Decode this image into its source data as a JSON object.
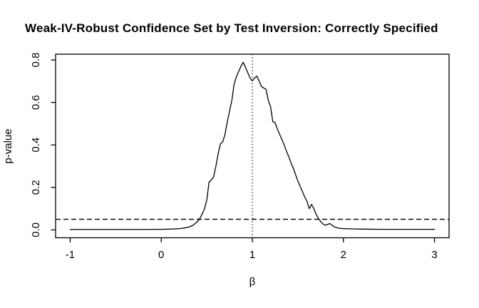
{
  "figure": {
    "background_color": "#ffffff",
    "foreground_color": "#000000"
  },
  "chart_data": {
    "type": "line",
    "title": "Weak-IV-Robust Confidence Set by Test Inversion: Correctly Specified",
    "xlabel": "β",
    "ylabel": "p-value",
    "xlim": [
      -1.16,
      3.16
    ],
    "ylim": [
      -0.037,
      0.827
    ],
    "x_ticks": [
      -1,
      0,
      1,
      2,
      3
    ],
    "x_tick_labels": [
      "-1",
      "0",
      "1",
      "2",
      "3"
    ],
    "y_ticks": [
      0,
      0.2,
      0.4,
      0.6,
      0.8
    ],
    "y_tick_labels": [
      "0.0",
      "0.2",
      "0.4",
      "0.6",
      "0.8"
    ],
    "grid": false,
    "legend": "none",
    "reference_lines": [
      {
        "orientation": "horizontal",
        "style": "dashed",
        "value": 0.05,
        "meaning": "significance-threshold-0.05"
      },
      {
        "orientation": "vertical",
        "style": "dotted",
        "value": 1.0,
        "meaning": "true-beta-value"
      }
    ],
    "series": [
      {
        "name": "p-value-curve",
        "color": "#000000",
        "points": [
          [
            -1.0,
            0.002
          ],
          [
            -0.8,
            0.002
          ],
          [
            -0.6,
            0.002
          ],
          [
            -0.4,
            0.002
          ],
          [
            -0.2,
            0.002
          ],
          [
            0.0,
            0.003
          ],
          [
            0.1,
            0.004
          ],
          [
            0.15,
            0.005
          ],
          [
            0.2,
            0.006
          ],
          [
            0.25,
            0.009
          ],
          [
            0.3,
            0.013
          ],
          [
            0.35,
            0.022
          ],
          [
            0.4,
            0.04
          ],
          [
            0.425,
            0.055
          ],
          [
            0.45,
            0.075
          ],
          [
            0.475,
            0.1
          ],
          [
            0.5,
            0.14
          ],
          [
            0.525,
            0.225
          ],
          [
            0.55,
            0.235
          ],
          [
            0.575,
            0.25
          ],
          [
            0.6,
            0.3
          ],
          [
            0.625,
            0.36
          ],
          [
            0.65,
            0.405
          ],
          [
            0.675,
            0.415
          ],
          [
            0.7,
            0.45
          ],
          [
            0.725,
            0.51
          ],
          [
            0.75,
            0.56
          ],
          [
            0.775,
            0.61
          ],
          [
            0.8,
            0.685
          ],
          [
            0.825,
            0.72
          ],
          [
            0.85,
            0.745
          ],
          [
            0.875,
            0.77
          ],
          [
            0.9,
            0.789
          ],
          [
            0.925,
            0.765
          ],
          [
            0.95,
            0.74
          ],
          [
            0.975,
            0.715
          ],
          [
            1.0,
            0.702
          ],
          [
            1.025,
            0.715
          ],
          [
            1.05,
            0.724
          ],
          [
            1.075,
            0.7
          ],
          [
            1.1,
            0.675
          ],
          [
            1.125,
            0.668
          ],
          [
            1.15,
            0.662
          ],
          [
            1.175,
            0.61
          ],
          [
            1.2,
            0.58
          ],
          [
            1.225,
            0.51
          ],
          [
            1.25,
            0.505
          ],
          [
            1.275,
            0.475
          ],
          [
            1.3,
            0.45
          ],
          [
            1.325,
            0.425
          ],
          [
            1.35,
            0.4
          ],
          [
            1.375,
            0.37
          ],
          [
            1.4,
            0.345
          ],
          [
            1.425,
            0.315
          ],
          [
            1.45,
            0.29
          ],
          [
            1.475,
            0.26
          ],
          [
            1.5,
            0.23
          ],
          [
            1.525,
            0.205
          ],
          [
            1.55,
            0.18
          ],
          [
            1.575,
            0.155
          ],
          [
            1.6,
            0.135
          ],
          [
            1.625,
            0.1
          ],
          [
            1.65,
            0.12
          ],
          [
            1.675,
            0.1
          ],
          [
            1.7,
            0.075
          ],
          [
            1.725,
            0.055
          ],
          [
            1.75,
            0.04
          ],
          [
            1.775,
            0.028
          ],
          [
            1.8,
            0.022
          ],
          [
            1.825,
            0.025
          ],
          [
            1.85,
            0.03
          ],
          [
            1.875,
            0.022
          ],
          [
            1.9,
            0.014
          ],
          [
            1.95,
            0.008
          ],
          [
            2.0,
            0.006
          ],
          [
            2.1,
            0.005
          ],
          [
            2.2,
            0.004
          ],
          [
            2.4,
            0.003
          ],
          [
            2.6,
            0.003
          ],
          [
            2.8,
            0.003
          ],
          [
            3.0,
            0.003
          ]
        ]
      }
    ]
  }
}
